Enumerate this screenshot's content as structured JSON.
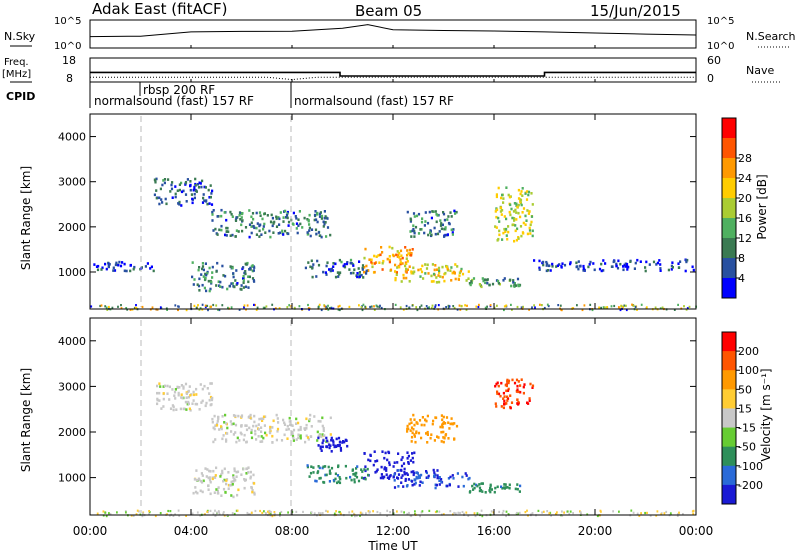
{
  "header": {
    "station": "Adak East (fitACF)",
    "beam": "Beam 05",
    "date": "15/Jun/2015"
  },
  "strip": {
    "nsky_label": "N.Sky",
    "nsky_ticks": [
      "10^5",
      "10^0"
    ],
    "nsearch_label": "N.Search",
    "nsearch_ticks": [
      "10^5",
      "10^0"
    ],
    "freq_label": "Freq.",
    "freq_unit": "[MHz]",
    "freq_ticks": [
      "18",
      "8"
    ],
    "nave_label": "Nave",
    "nave_ticks": [
      "60",
      "0"
    ],
    "cpid_label": "CPID",
    "cpid_segments": [
      {
        "label": "normalsound (fast) 157 RF"
      },
      {
        "label": "rbsp 200 RF"
      },
      {
        "label": "normalsound (fast) 157 RF"
      }
    ]
  },
  "axes": {
    "xlabel": "Time UT",
    "xticks": [
      "00:00",
      "04:00",
      "08:00",
      "12:00",
      "16:00",
      "20:00",
      "00:00"
    ],
    "ylabel": "Slant Range [km]",
    "yticks": [
      "1000",
      "2000",
      "3000",
      "4000"
    ]
  },
  "power_colorbar": {
    "label": "Power [dB]",
    "ticks": [
      "4",
      "8",
      "12",
      "16",
      "20",
      "24",
      "28"
    ],
    "colors": [
      "#0000ff",
      "#2850a0",
      "#3a7a52",
      "#4fb060",
      "#aacc33",
      "#ffcc00",
      "#ff9900",
      "#ff5500",
      "#ff0000"
    ]
  },
  "velocity_colorbar": {
    "label": "Velocity [m s⁻¹]",
    "ticks": [
      "200",
      "100",
      "50",
      "15",
      "-15",
      "-50",
      "-100",
      "-200"
    ],
    "colors": [
      "#1a1ad4",
      "#2a6ad8",
      "#2e8f5a",
      "#66cc33",
      "#c8c8c8",
      "#ffcc33",
      "#ff9900",
      "#ff5500",
      "#ff0000"
    ]
  },
  "chart_data": [
    {
      "type": "line",
      "title": "",
      "series": [
        {
          "name": "N.Sky",
          "x_hours": [
            0,
            2,
            4,
            6,
            8,
            10,
            11,
            12,
            14,
            16,
            18,
            20,
            22,
            24
          ],
          "values": [
            100,
            120,
            800,
            1000,
            1100,
            4000,
            20000,
            2000,
            1500,
            1200,
            800,
            500,
            300,
            200
          ]
        }
      ],
      "ylim_log10": [
        0,
        5
      ]
    },
    {
      "type": "line",
      "series": [
        {
          "name": "Freq.",
          "x_hours": [
            0,
            9.9,
            9.9,
            18,
            18,
            24
          ],
          "values": [
            12,
            12,
            10.5,
            10.5,
            12,
            12
          ]
        },
        {
          "name": "Nave",
          "x_hours": [
            0,
            7,
            8,
            9,
            18,
            24
          ],
          "values": [
            12,
            12,
            6,
            12,
            12,
            12
          ]
        }
      ],
      "ylim_freq": [
        8,
        18
      ],
      "ylim_nave": [
        0,
        60
      ]
    },
    {
      "type": "heatmap",
      "title": "",
      "quantity": "Power [dB]",
      "xlim_hours": [
        0,
        24
      ],
      "ylim_km": [
        180,
        4500
      ],
      "regions": [
        {
          "t0": 4.8,
          "t1": 9.5,
          "r0": 1800,
          "r1": 2400,
          "value": 10
        },
        {
          "t0": 2.5,
          "t1": 4.8,
          "r0": 2500,
          "r1": 3100,
          "value": 8
        },
        {
          "t0": 10.8,
          "t1": 12.8,
          "r0": 1000,
          "r1": 1600,
          "value": 24
        },
        {
          "t0": 12.0,
          "t1": 15.0,
          "r0": 800,
          "r1": 1200,
          "value": 20
        },
        {
          "t0": 15.0,
          "t1": 17.0,
          "r0": 700,
          "r1": 900,
          "value": 12
        },
        {
          "t0": 4.0,
          "t1": 6.5,
          "r0": 600,
          "r1": 1250,
          "value": 10
        },
        {
          "t0": 8.5,
          "t1": 11.0,
          "r0": 900,
          "r1": 1300,
          "value": 8
        },
        {
          "t0": 12.5,
          "t1": 14.5,
          "r0": 1800,
          "r1": 2400,
          "value": 10
        },
        {
          "t0": 16.0,
          "t1": 17.5,
          "r0": 1700,
          "r1": 2900,
          "value": 18
        },
        {
          "t0": 17.5,
          "t1": 24.0,
          "r0": 1050,
          "r1": 1300,
          "value": 6
        },
        {
          "t0": 0.0,
          "t1": 2.5,
          "r0": 1050,
          "r1": 1250,
          "value": 6
        }
      ]
    },
    {
      "type": "heatmap",
      "title": "",
      "quantity": "Velocity [m s⁻¹]",
      "xlim_hours": [
        0,
        24
      ],
      "ylim_km": [
        180,
        4500
      ],
      "regions": [
        {
          "t0": 4.8,
          "t1": 9.5,
          "r0": 1800,
          "r1": 2400,
          "value": 0
        },
        {
          "t0": 2.5,
          "t1": 4.8,
          "r0": 2500,
          "r1": 3100,
          "value": 0
        },
        {
          "t0": 10.8,
          "t1": 12.8,
          "r0": 1000,
          "r1": 1600,
          "value": 200
        },
        {
          "t0": 12.0,
          "t1": 15.0,
          "r0": 800,
          "r1": 1200,
          "value": 150
        },
        {
          "t0": 15.0,
          "t1": 17.0,
          "r0": 700,
          "r1": 900,
          "value": 60
        },
        {
          "t0": 8.5,
          "t1": 11.0,
          "r0": 900,
          "r1": 1300,
          "value": 60
        },
        {
          "t0": 4.0,
          "t1": 6.5,
          "r0": 600,
          "r1": 1250,
          "value": 0
        },
        {
          "t0": 12.5,
          "t1": 14.5,
          "r0": 1800,
          "r1": 2400,
          "value": -80
        },
        {
          "t0": 16.0,
          "t1": 17.5,
          "r0": 2500,
          "r1": 3200,
          "value": -200
        },
        {
          "t0": 9.0,
          "t1": 10.2,
          "r0": 1600,
          "r1": 1900,
          "value": 200
        }
      ]
    }
  ]
}
